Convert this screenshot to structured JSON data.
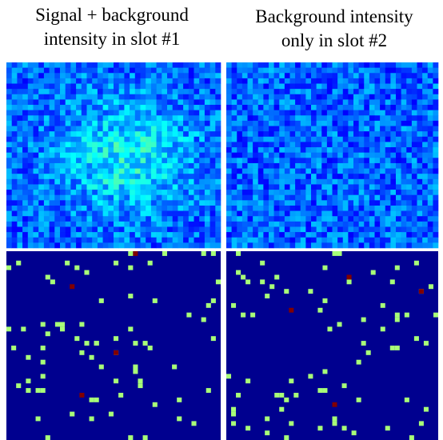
{
  "panels": [
    {
      "title": [
        "Signal + background",
        "intensity in slot #1"
      ]
    },
    {
      "title": [
        "Background intensity",
        "only in slot #2"
      ]
    }
  ]
}
